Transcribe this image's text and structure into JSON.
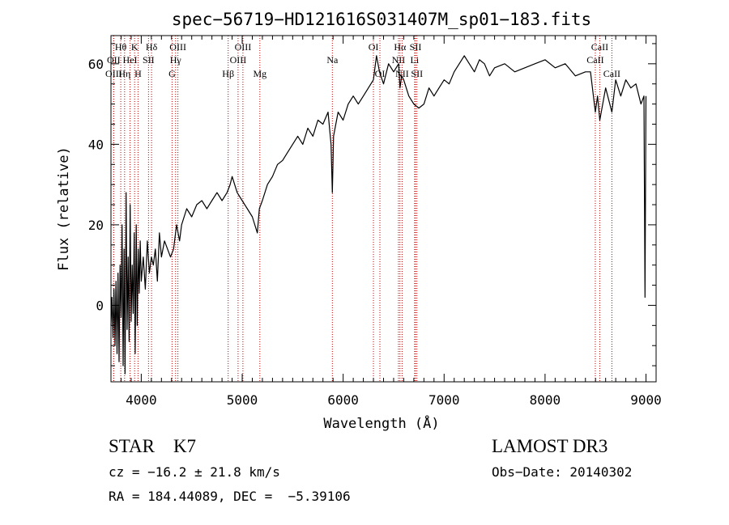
{
  "chart_data": {
    "type": "line",
    "title": "spec−56719−HD121616S031407M_sp01−183.fits",
    "xlabel": "Wavelength (Å)",
    "ylabel": "Flux (relative)",
    "xlim": [
      3700,
      9100
    ],
    "ylim": [
      -19,
      67
    ],
    "x_ticks": [
      4000,
      5000,
      6000,
      7000,
      8000,
      9000
    ],
    "x_tick_labels": [
      "4000",
      "5000",
      "6000",
      "7000",
      "8000",
      "9000"
    ],
    "y_ticks": [
      0,
      20,
      40,
      60
    ],
    "y_tick_labels": [
      "0",
      "20",
      "40",
      "60"
    ],
    "x_minor_step": 100,
    "y_minor_step": 5,
    "grid": false,
    "line_color": "#000000",
    "marker_color": "#c00000",
    "spectral_lines": [
      {
        "name": "Hθ",
        "wavelength": 3797,
        "row": 0
      },
      {
        "name": "OII",
        "wavelength": 3727,
        "row": 1
      },
      {
        "name": "OIII",
        "wavelength": 3727,
        "row": 2
      },
      {
        "name": "Hη",
        "wavelength": 3835,
        "row": 2
      },
      {
        "name": "HeI",
        "wavelength": 3889,
        "row": 1
      },
      {
        "name": "K",
        "wavelength": 3934,
        "row": 0
      },
      {
        "name": "H",
        "wavelength": 3968,
        "row": 2
      },
      {
        "name": "SII",
        "wavelength": 4072,
        "row": 1
      },
      {
        "name": "Hδ",
        "wavelength": 4102,
        "row": 0
      },
      {
        "name": "OIII",
        "wavelength": 4363,
        "row": 0
      },
      {
        "name": "Hγ",
        "wavelength": 4340,
        "row": 1
      },
      {
        "name": "G",
        "wavelength": 4305,
        "row": 2
      },
      {
        "name": "Hβ",
        "wavelength": 4861,
        "row": 2
      },
      {
        "name": "OIII",
        "wavelength": 5007,
        "row": 0
      },
      {
        "name": "OIII",
        "wavelength": 4959,
        "row": 1
      },
      {
        "name": "Mg",
        "wavelength": 5175,
        "row": 2
      },
      {
        "name": "Na",
        "wavelength": 5893,
        "row": 1
      },
      {
        "name": "OI",
        "wavelength": 6300,
        "row": 0
      },
      {
        "name": "OI",
        "wavelength": 6364,
        "row": 2
      },
      {
        "name": "Hα",
        "wavelength": 6563,
        "row": 0
      },
      {
        "name": "NII",
        "wavelength": 6548,
        "row": 1
      },
      {
        "name": "NII",
        "wavelength": 6584,
        "row": 2
      },
      {
        "name": "SII",
        "wavelength": 6717,
        "row": 0
      },
      {
        "name": "Li",
        "wavelength": 6708,
        "row": 1
      },
      {
        "name": "SII",
        "wavelength": 6731,
        "row": 2
      },
      {
        "name": "CaII",
        "wavelength": 8542,
        "row": 0
      },
      {
        "name": "CaII",
        "wavelength": 8498,
        "row": 1
      },
      {
        "name": "CaII",
        "wavelength": 8662,
        "row": 2
      }
    ],
    "series": [
      {
        "name": "flux",
        "x": [
          3700,
          3710,
          3720,
          3730,
          3740,
          3750,
          3760,
          3770,
          3780,
          3790,
          3800,
          3810,
          3820,
          3830,
          3840,
          3850,
          3860,
          3870,
          3880,
          3890,
          3900,
          3910,
          3920,
          3930,
          3940,
          3950,
          3960,
          3970,
          3980,
          3990,
          4000,
          4020,
          4040,
          4060,
          4080,
          4100,
          4120,
          4140,
          4160,
          4180,
          4200,
          4230,
          4260,
          4290,
          4320,
          4350,
          4380,
          4400,
          4450,
          4500,
          4550,
          4600,
          4650,
          4700,
          4750,
          4800,
          4850,
          4880,
          4900,
          4950,
          5000,
          5050,
          5100,
          5150,
          5170,
          5200,
          5250,
          5300,
          5350,
          5400,
          5450,
          5500,
          5550,
          5600,
          5650,
          5700,
          5750,
          5800,
          5850,
          5880,
          5893,
          5905,
          5950,
          6000,
          6050,
          6100,
          6150,
          6200,
          6250,
          6300,
          6330,
          6360,
          6400,
          6450,
          6500,
          6550,
          6563,
          6580,
          6600,
          6650,
          6700,
          6750,
          6800,
          6850,
          6900,
          6950,
          7000,
          7050,
          7100,
          7150,
          7200,
          7250,
          7300,
          7350,
          7400,
          7450,
          7500,
          7600,
          7700,
          7800,
          7900,
          8000,
          8100,
          8200,
          8300,
          8400,
          8450,
          8498,
          8520,
          8542,
          8600,
          8662,
          8700,
          8750,
          8800,
          8850,
          8900,
          8950,
          8980,
          8990,
          9000
        ],
        "y": [
          -5,
          2,
          -8,
          4,
          -10,
          6,
          -12,
          8,
          -14,
          10,
          -3,
          20,
          -15,
          14,
          -17,
          28,
          -6,
          12,
          -9,
          25,
          -4,
          10,
          -2,
          18,
          -12,
          20,
          -5,
          14,
          3,
          16,
          6,
          12,
          4,
          16,
          8,
          12,
          10,
          14,
          6,
          18,
          12,
          16,
          14,
          12,
          14,
          20,
          16,
          20,
          24,
          22,
          25,
          26,
          24,
          26,
          28,
          26,
          28,
          30,
          32,
          28,
          26,
          24,
          22,
          18,
          24,
          26,
          30,
          32,
          35,
          36,
          38,
          40,
          42,
          40,
          44,
          42,
          46,
          45,
          48,
          40,
          28,
          42,
          48,
          46,
          50,
          52,
          50,
          52,
          54,
          56,
          62,
          58,
          55,
          60,
          58,
          60,
          54,
          57,
          56,
          52,
          50,
          49,
          50,
          54,
          52,
          54,
          56,
          55,
          58,
          60,
          62,
          60,
          58,
          61,
          60,
          57,
          59,
          60,
          58,
          59,
          60,
          61,
          59,
          60,
          57,
          58,
          58,
          48,
          52,
          46,
          54,
          48,
          56,
          52,
          56,
          54,
          55,
          50,
          52,
          2,
          52
        ]
      }
    ]
  },
  "info": {
    "class_line": "STAR    K7",
    "survey": "LAMOST DR3",
    "redshift": "cz = −16.2 ± 21.8 km/s",
    "obs_date": "Obs−Date: 20140302",
    "coords": "RA = 184.44089, DEC =  −5.39106"
  }
}
